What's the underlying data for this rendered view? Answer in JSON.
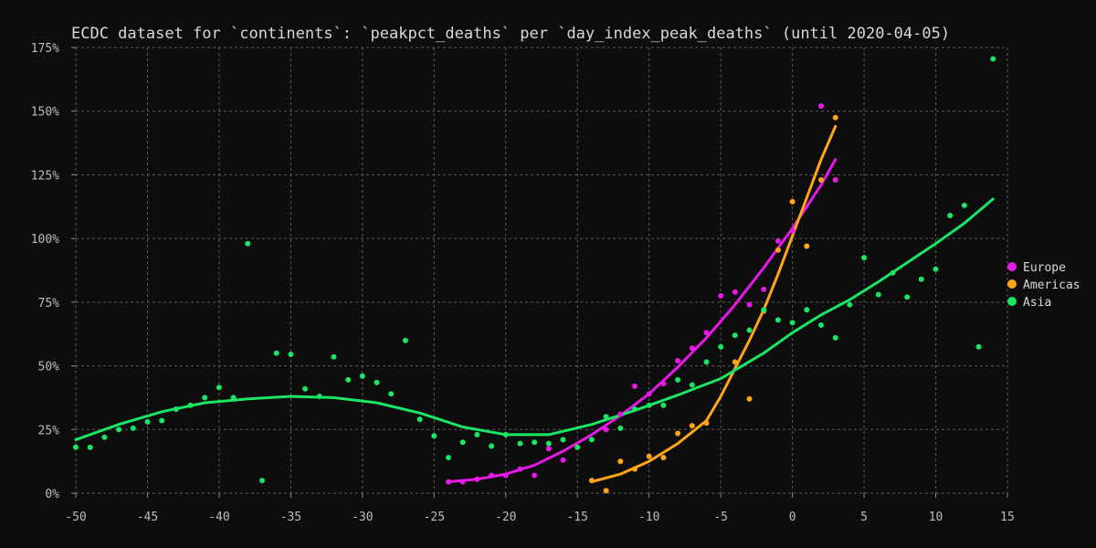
{
  "chart_data": {
    "type": "scatter",
    "title": "ECDC dataset for `continents`: `peakpct_deaths` per `day_index_peak_deaths` (until 2020-04-05)",
    "xlabel": "",
    "ylabel": "",
    "xlim": [
      -50,
      15
    ],
    "ylim": [
      0,
      175
    ],
    "x_ticks": [
      -50,
      -45,
      -40,
      -35,
      -30,
      -25,
      -20,
      -15,
      -10,
      -5,
      0,
      5,
      10,
      15
    ],
    "y_ticks": [
      0,
      25,
      50,
      75,
      100,
      125,
      150,
      175
    ],
    "y_tick_suffix": "%",
    "grid": true,
    "legend_position": "right",
    "series": [
      {
        "name": "Europe",
        "color": "#e619e6",
        "points": [
          [
            -24,
            4.5
          ],
          [
            -23,
            4.5
          ],
          [
            -22,
            5.5
          ],
          [
            -21,
            7
          ],
          [
            -20,
            7
          ],
          [
            -19,
            9.5
          ],
          [
            -18,
            7
          ],
          [
            -17,
            17.5
          ],
          [
            -16,
            13
          ],
          [
            -13,
            25
          ],
          [
            -12,
            31
          ],
          [
            -11,
            42
          ],
          [
            -10,
            39
          ],
          [
            -9,
            43
          ],
          [
            -8,
            52
          ],
          [
            -7,
            57
          ],
          [
            -6,
            63
          ],
          [
            -5,
            77.5
          ],
          [
            -4,
            79
          ],
          [
            -3,
            74
          ],
          [
            -2,
            80
          ],
          [
            -1,
            99
          ],
          [
            0,
            103
          ],
          [
            2,
            152
          ],
          [
            3,
            123
          ]
        ],
        "trend": [
          [
            -24,
            4.5
          ],
          [
            -22,
            5.5
          ],
          [
            -20,
            7.5
          ],
          [
            -18,
            11
          ],
          [
            -16,
            16.5
          ],
          [
            -14,
            23
          ],
          [
            -12,
            30.5
          ],
          [
            -10,
            39
          ],
          [
            -8,
            49.5
          ],
          [
            -6,
            61
          ],
          [
            -4,
            74
          ],
          [
            -2,
            88.5
          ],
          [
            0,
            104
          ],
          [
            2,
            121
          ],
          [
            3,
            131
          ]
        ]
      },
      {
        "name": "Americas",
        "color": "#ffa516",
        "points": [
          [
            -14,
            5
          ],
          [
            -13,
            1
          ],
          [
            -12,
            12.5
          ],
          [
            -11,
            9.5
          ],
          [
            -10,
            14.5
          ],
          [
            -9,
            14
          ],
          [
            -8,
            23.5
          ],
          [
            -7,
            26.5
          ],
          [
            -6,
            27.5
          ],
          [
            -4,
            51.5
          ],
          [
            -3,
            37
          ],
          [
            -2,
            71.5
          ],
          [
            -1,
            95.5
          ],
          [
            0,
            114.5
          ],
          [
            1,
            97
          ],
          [
            2,
            123
          ],
          [
            3,
            147.5
          ]
        ],
        "trend": [
          [
            -14,
            4.5
          ],
          [
            -12,
            7.5
          ],
          [
            -10,
            12.5
          ],
          [
            -8,
            19.5
          ],
          [
            -6,
            28.5
          ],
          [
            -5,
            38
          ],
          [
            -4,
            49
          ],
          [
            -3,
            60
          ],
          [
            -2,
            72
          ],
          [
            -1,
            86
          ],
          [
            0,
            101
          ],
          [
            1,
            116
          ],
          [
            2,
            131
          ],
          [
            3,
            144
          ]
        ]
      },
      {
        "name": "Asia",
        "color": "#19e664",
        "points": [
          [
            -50,
            18
          ],
          [
            -49,
            18
          ],
          [
            -48,
            22
          ],
          [
            -47,
            25
          ],
          [
            -46,
            25.5
          ],
          [
            -45,
            28
          ],
          [
            -44,
            28.5
          ],
          [
            -43,
            33
          ],
          [
            -42,
            34.5
          ],
          [
            -41,
            37.5
          ],
          [
            -40,
            41.5
          ],
          [
            -39,
            37.5
          ],
          [
            -38,
            98
          ],
          [
            -37,
            5
          ],
          [
            -36,
            55
          ],
          [
            -35,
            54.5
          ],
          [
            -34,
            41
          ],
          [
            -33,
            38
          ],
          [
            -32,
            53.5
          ],
          [
            -31,
            44.5
          ],
          [
            -30,
            46
          ],
          [
            -29,
            43.5
          ],
          [
            -28,
            39
          ],
          [
            -27,
            60
          ],
          [
            -26,
            29
          ],
          [
            -25,
            22.5
          ],
          [
            -24,
            14
          ],
          [
            -23,
            20
          ],
          [
            -22,
            23
          ],
          [
            -21,
            18.5
          ],
          [
            -20,
            23
          ],
          [
            -19,
            19.5
          ],
          [
            -18,
            20
          ],
          [
            -17,
            19.5
          ],
          [
            -16,
            21
          ],
          [
            -15,
            18
          ],
          [
            -14,
            21
          ],
          [
            -13,
            30
          ],
          [
            -12,
            25.5
          ],
          [
            -11,
            33
          ],
          [
            -10,
            34.5
          ],
          [
            -9,
            34.5
          ],
          [
            -8,
            44.5
          ],
          [
            -7,
            42.5
          ],
          [
            -6,
            51.5
          ],
          [
            -5,
            57.5
          ],
          [
            -4,
            62
          ],
          [
            -3,
            64
          ],
          [
            -2,
            72
          ],
          [
            -1,
            68
          ],
          [
            0,
            67
          ],
          [
            1,
            72
          ],
          [
            2,
            66
          ],
          [
            3,
            61
          ],
          [
            4,
            74
          ],
          [
            5,
            92.5
          ],
          [
            6,
            78
          ],
          [
            7,
            86.5
          ],
          [
            8,
            77
          ],
          [
            9,
            84
          ],
          [
            10,
            88
          ],
          [
            11,
            109
          ],
          [
            12,
            113
          ],
          [
            13,
            57.5
          ],
          [
            14,
            170.5
          ]
        ],
        "trend": [
          [
            -50,
            21
          ],
          [
            -47,
            27
          ],
          [
            -44,
            32
          ],
          [
            -41,
            35.5
          ],
          [
            -38,
            37
          ],
          [
            -35,
            38
          ],
          [
            -32,
            37.5
          ],
          [
            -29,
            35.5
          ],
          [
            -26,
            31.5
          ],
          [
            -23,
            26
          ],
          [
            -20,
            23
          ],
          [
            -17,
            23
          ],
          [
            -14,
            27
          ],
          [
            -11,
            32.5
          ],
          [
            -8,
            38.5
          ],
          [
            -5,
            45
          ],
          [
            -2,
            55
          ],
          [
            0,
            63
          ],
          [
            2,
            70
          ],
          [
            4,
            76
          ],
          [
            6,
            83
          ],
          [
            8,
            90.5
          ],
          [
            10,
            98
          ],
          [
            12,
            106
          ],
          [
            14,
            115.5
          ]
        ]
      }
    ]
  }
}
